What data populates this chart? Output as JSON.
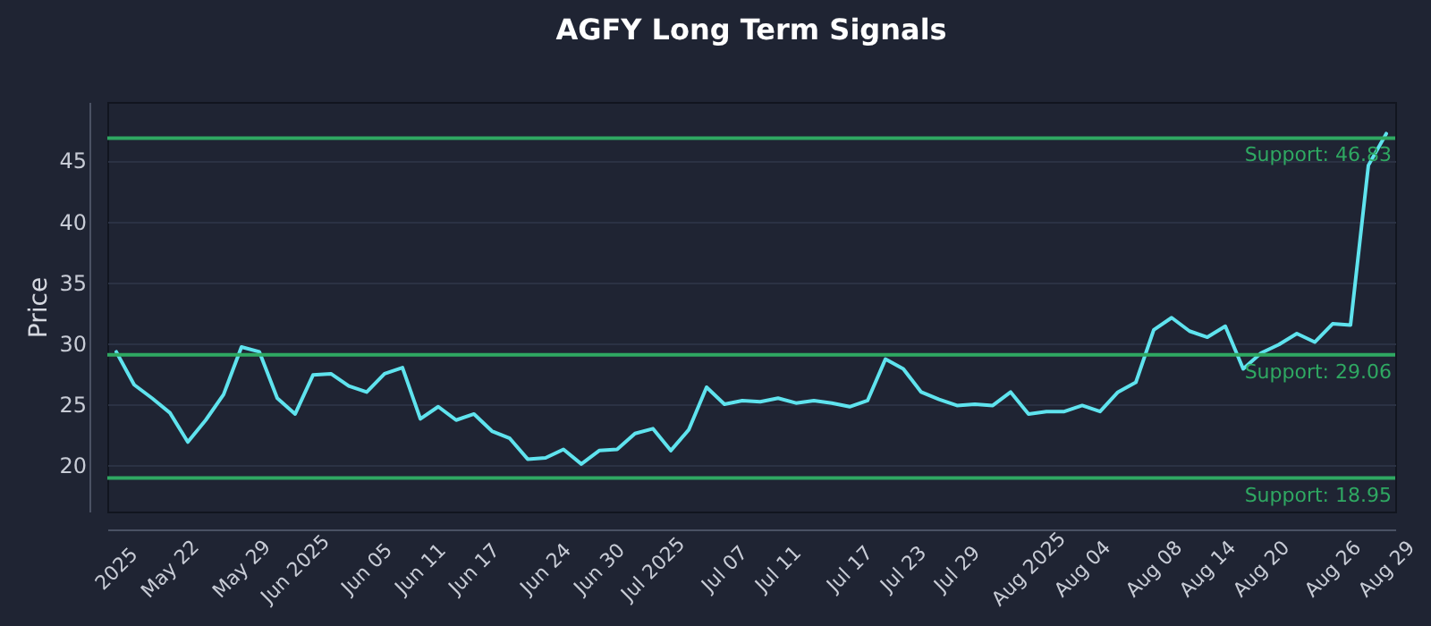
{
  "chart_data": {
    "type": "line",
    "title": "AGFY Long Term Signals",
    "ylabel": "Price",
    "categories": [
      "2025",
      null,
      null,
      "May 22",
      null,
      null,
      null,
      "May 29",
      null,
      null,
      "Jun 2025",
      null,
      null,
      null,
      "Jun 05",
      null,
      null,
      "Jun 11",
      null,
      null,
      "Jun 17",
      null,
      null,
      null,
      "Jun 24",
      null,
      null,
      "Jun 30",
      null,
      null,
      "Jul 2025",
      null,
      null,
      null,
      "Jul 07",
      null,
      null,
      "Jul 11",
      null,
      null,
      null,
      "Jul 17",
      null,
      null,
      "Jul 23",
      null,
      null,
      "Jul 29",
      null,
      null,
      null,
      "Aug 2025",
      null,
      null,
      "Aug 04",
      null,
      null,
      null,
      "Aug 08",
      null,
      null,
      "Aug 14",
      null,
      null,
      "Aug 20",
      null,
      null,
      null,
      "Aug 26",
      null,
      null,
      "Aug 29"
    ],
    "series": [
      {
        "color": "#5fe3ee",
        "values": [
          29.3,
          26.6,
          25.5,
          24.3,
          21.9,
          23.7,
          25.8,
          29.7,
          29.3,
          25.5,
          24.2,
          27.4,
          27.5,
          26.5,
          26.0,
          27.5,
          28.0,
          23.8,
          24.8,
          23.7,
          24.2,
          22.8,
          22.2,
          20.5,
          20.6,
          21.3,
          20.1,
          21.2,
          21.3,
          22.6,
          23.0,
          21.2,
          22.9,
          26.4,
          25.0,
          25.3,
          25.2,
          25.5,
          25.1,
          25.3,
          25.1,
          24.8,
          25.3,
          28.7,
          27.9,
          26.0,
          25.4,
          24.9,
          25.0,
          24.9,
          26.0,
          24.2,
          24.4,
          24.4,
          24.9,
          24.4,
          26.0,
          26.8,
          31.1,
          32.1,
          31.0,
          30.5,
          31.4,
          27.9,
          29.2,
          29.9,
          30.8,
          30.1,
          31.6,
          31.5,
          44.6,
          47.2
        ]
      }
    ],
    "ylim": [
      16.2,
      49.8
    ],
    "yticks": [
      20,
      25,
      30,
      35,
      40,
      45
    ],
    "grid": "y",
    "marker": "none",
    "line_style": "solid",
    "ref_lines": [
      {
        "axis": "y",
        "value": 46.83,
        "label": "Support: 46.83",
        "color": "#2fa862"
      },
      {
        "axis": "y",
        "value": 29.06,
        "label": "Support: 29.06",
        "color": "#2fa862"
      },
      {
        "axis": "y",
        "value": 18.95,
        "label": "Support: 18.95",
        "color": "#2fa862"
      }
    ]
  }
}
